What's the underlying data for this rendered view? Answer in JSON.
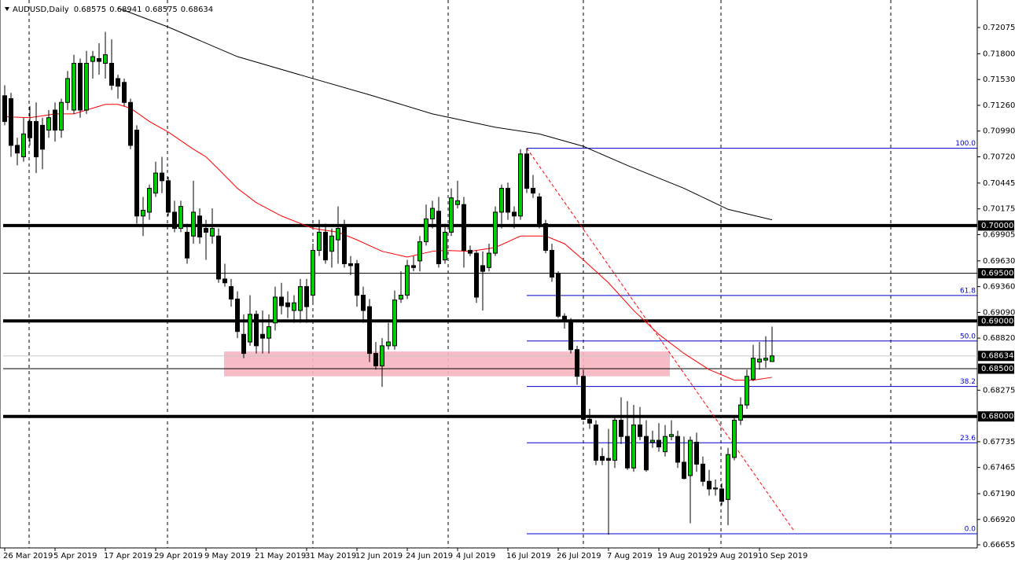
{
  "chart_data": {
    "type": "candlestick",
    "title": "AUDUSD,Daily",
    "categories": [
      "26 Mar 2019",
      null,
      null,
      null,
      null,
      null,
      null,
      null,
      "5 Apr 2019",
      null,
      null,
      null,
      null,
      null,
      null,
      null,
      "17 Apr 2019",
      null,
      null,
      null,
      null,
      null,
      null,
      null,
      "29 Apr 2019",
      null,
      null,
      null,
      null,
      null,
      null,
      null,
      "9 May 2019",
      null,
      null,
      null,
      null,
      null,
      null,
      null,
      "21 May 2019",
      null,
      null,
      null,
      null,
      null,
      null,
      null,
      "31 May 2019",
      null,
      null,
      null,
      null,
      null,
      null,
      null,
      "12 Jun 2019",
      null,
      null,
      null,
      null,
      null,
      null,
      null,
      "24 Jun 2019",
      null,
      null,
      null,
      null,
      null,
      null,
      null,
      "4 Jul 2019",
      null,
      null,
      null,
      null,
      null,
      null,
      null,
      "16 Jul 2019",
      null,
      null,
      null,
      null,
      null,
      null,
      null,
      "26 Jul 2019",
      null,
      null,
      null,
      null,
      null,
      null,
      null,
      "7 Aug 2019",
      null,
      null,
      null,
      null,
      null,
      null,
      null,
      "19 Aug 2019",
      null,
      null,
      null,
      null,
      null,
      null,
      null,
      "29 Aug 2019",
      null,
      null,
      null,
      null,
      null,
      null,
      null,
      "10 Sep 2019",
      null,
      null
    ],
    "ohlc": [
      [
        0.7136,
        0.7147,
        0.7105,
        0.7109
      ],
      [
        0.7133,
        0.7139,
        0.7072,
        0.7084
      ],
      [
        0.7084,
        0.7092,
        0.7063,
        0.7076
      ],
      [
        0.7072,
        0.7113,
        0.7067,
        0.7096
      ],
      [
        0.7109,
        0.7125,
        0.7084,
        0.7092
      ],
      [
        0.7109,
        0.7129,
        0.7055,
        0.7072
      ],
      [
        0.7105,
        0.7113,
        0.7059,
        0.708
      ],
      [
        0.71,
        0.7121,
        0.7092,
        0.7113
      ],
      [
        0.7121,
        0.7129,
        0.7088,
        0.71
      ],
      [
        0.71,
        0.7133,
        0.7092,
        0.7129
      ],
      [
        0.7129,
        0.7162,
        0.7121,
        0.7154
      ],
      [
        0.7121,
        0.7179,
        0.7117,
        0.717
      ],
      [
        0.717,
        0.7175,
        0.7113,
        0.7121
      ],
      [
        0.7121,
        0.7183,
        0.7117,
        0.717
      ],
      [
        0.7172,
        0.7183,
        0.7154,
        0.7177
      ],
      [
        0.7175,
        0.7191,
        0.7158,
        0.7172
      ],
      [
        0.717,
        0.7203,
        0.7154,
        0.7179
      ],
      [
        0.717,
        0.7195,
        0.7142,
        0.7147
      ],
      [
        0.7154,
        0.7158,
        0.7133,
        0.7146
      ],
      [
        0.715,
        0.7154,
        0.7125,
        0.7129
      ],
      [
        0.7129,
        0.7133,
        0.708,
        0.7084
      ],
      [
        0.71,
        0.7105,
        0.7002,
        0.701
      ],
      [
        0.701,
        0.703,
        0.6989,
        0.7016
      ],
      [
        0.7014,
        0.7043,
        0.7006,
        0.7039
      ],
      [
        0.7034,
        0.7067,
        0.703,
        0.7055
      ],
      [
        0.7055,
        0.7072,
        0.7034,
        0.7047
      ],
      [
        0.7047,
        0.7051,
        0.701,
        0.7014
      ],
      [
        0.7014,
        0.7026,
        0.6993,
        0.6997
      ],
      [
        0.6997,
        0.7026,
        0.6993,
        0.702
      ],
      [
        0.6993,
        0.7002,
        0.696,
        0.6966
      ],
      [
        0.6989,
        0.7047,
        0.6981,
        0.7014
      ],
      [
        0.701,
        0.7018,
        0.6981,
        0.6988
      ],
      [
        0.6997,
        0.7006,
        0.6964,
        0.6993
      ],
      [
        0.6989,
        0.7018,
        0.6981,
        0.6997
      ],
      [
        0.6989,
        0.6997,
        0.694,
        0.6944
      ],
      [
        0.6944,
        0.696,
        0.6936,
        0.694
      ],
      [
        0.6936,
        0.6944,
        0.6915,
        0.6923
      ],
      [
        0.6923,
        0.6931,
        0.6882,
        0.6889
      ],
      [
        0.6886,
        0.6907,
        0.6861,
        0.6866
      ],
      [
        0.6878,
        0.6927,
        0.6874,
        0.6907
      ],
      [
        0.6907,
        0.6911,
        0.6866,
        0.6874
      ],
      [
        0.6886,
        0.6911,
        0.6866,
        0.6882
      ],
      [
        0.6882,
        0.6907,
        0.6866,
        0.6894
      ],
      [
        0.6898,
        0.6936,
        0.689,
        0.6925
      ],
      [
        0.6925,
        0.694,
        0.6907,
        0.6916
      ],
      [
        0.6919,
        0.6931,
        0.6903,
        0.6915
      ],
      [
        0.6911,
        0.6927,
        0.6898,
        0.6919
      ],
      [
        0.6911,
        0.6944,
        0.6898,
        0.6936
      ],
      [
        0.6936,
        0.6944,
        0.6898,
        0.6915
      ],
      [
        0.6927,
        0.6981,
        0.6919,
        0.6974
      ],
      [
        0.6974,
        0.7006,
        0.6968,
        0.6993
      ],
      [
        0.6993,
        0.7002,
        0.696,
        0.6964
      ],
      [
        0.6973,
        0.6997,
        0.6956,
        0.6989
      ],
      [
        0.6985,
        0.702,
        0.696,
        0.6997
      ],
      [
        0.6999,
        0.7006,
        0.6956,
        0.696
      ],
      [
        0.696,
        0.6968,
        0.6948,
        0.6958
      ],
      [
        0.696,
        0.6964,
        0.6915,
        0.6927
      ],
      [
        0.6927,
        0.6936,
        0.6898,
        0.6911
      ],
      [
        0.6915,
        0.6923,
        0.6857,
        0.6866
      ],
      [
        0.6866,
        0.6878,
        0.6849,
        0.6853
      ],
      [
        0.6853,
        0.6882,
        0.6831,
        0.6874
      ],
      [
        0.6874,
        0.6898,
        0.687,
        0.6878
      ],
      [
        0.6874,
        0.6932,
        0.687,
        0.6922
      ],
      [
        0.6923,
        0.6952,
        0.6919,
        0.6927
      ],
      [
        0.6927,
        0.6964,
        0.6923,
        0.6958
      ],
      [
        0.6958,
        0.6968,
        0.6952,
        0.6956
      ],
      [
        0.6963,
        0.6989,
        0.6952,
        0.6983
      ],
      [
        0.6983,
        0.7022,
        0.6979,
        0.7007
      ],
      [
        0.7007,
        0.7026,
        0.6997,
        0.7018
      ],
      [
        0.7015,
        0.703,
        0.6956,
        0.696
      ],
      [
        0.6964,
        0.7002,
        0.696,
        0.6993
      ],
      [
        0.6993,
        0.7039,
        0.6989,
        0.7029
      ],
      [
        0.7022,
        0.7047,
        0.7018,
        0.7026
      ],
      [
        0.7022,
        0.703,
        0.6956,
        0.6974
      ],
      [
        0.6974,
        0.6979,
        0.6968,
        0.6971
      ],
      [
        0.6971,
        0.6974,
        0.6919,
        0.6925
      ],
      [
        0.6958,
        0.6973,
        0.6911,
        0.6952
      ],
      [
        0.6956,
        0.6981,
        0.6952,
        0.6971
      ],
      [
        0.6971,
        0.702,
        0.6968,
        0.7014
      ],
      [
        0.7014,
        0.7043,
        0.6997,
        0.7039
      ],
      [
        0.7039,
        0.7045,
        0.7006,
        0.7014
      ],
      [
        0.7014,
        0.702,
        0.6997,
        0.701
      ],
      [
        0.701,
        0.708,
        0.7006,
        0.7075
      ],
      [
        0.7075,
        0.7081,
        0.7034,
        0.7039
      ],
      [
        0.7039,
        0.7053,
        0.7029,
        0.7034
      ],
      [
        0.703,
        0.7034,
        0.6997,
        0.7002
      ],
      [
        0.7002,
        0.7006,
        0.6971,
        0.6974
      ],
      [
        0.6974,
        0.6981,
        0.6941,
        0.6946
      ],
      [
        0.695,
        0.6952,
        0.6903,
        0.6905
      ],
      [
        0.6905,
        0.6908,
        0.6892,
        0.69
      ],
      [
        0.69,
        0.6903,
        0.6866,
        0.687
      ],
      [
        0.687,
        0.6874,
        0.6833,
        0.6842
      ],
      [
        0.6842,
        0.6849,
        0.6796,
        0.6797
      ],
      [
        0.6797,
        0.6808,
        0.6787,
        0.6793
      ],
      [
        0.6791,
        0.6796,
        0.6749,
        0.6754
      ],
      [
        0.6758,
        0.6767,
        0.6749,
        0.6754
      ],
      [
        0.6756,
        0.6787,
        0.6676,
        0.6754
      ],
      [
        0.6754,
        0.68,
        0.6746,
        0.6796
      ],
      [
        0.6796,
        0.682,
        0.6771,
        0.6779
      ],
      [
        0.6779,
        0.6816,
        0.6744,
        0.6746
      ],
      [
        0.6746,
        0.6812,
        0.6742,
        0.6791
      ],
      [
        0.6791,
        0.681,
        0.6775,
        0.6779
      ],
      [
        0.6779,
        0.6796,
        0.6742,
        0.6744
      ],
      [
        0.6773,
        0.6785,
        0.6767,
        0.6775
      ],
      [
        0.6775,
        0.6793,
        0.6763,
        0.6768
      ],
      [
        0.6763,
        0.6791,
        0.6758,
        0.6779
      ],
      [
        0.6779,
        0.6796,
        0.6775,
        0.6781
      ],
      [
        0.6779,
        0.6785,
        0.6746,
        0.6752
      ],
      [
        0.6752,
        0.6779,
        0.6734,
        0.6735
      ],
      [
        0.6738,
        0.6779,
        0.6688,
        0.6775
      ],
      [
        0.6773,
        0.6783,
        0.6742,
        0.675
      ],
      [
        0.675,
        0.6758,
        0.6727,
        0.6732
      ],
      [
        0.6732,
        0.6744,
        0.6717,
        0.6724
      ],
      [
        0.6724,
        0.6734,
        0.6717,
        0.6725
      ],
      [
        0.6724,
        0.673,
        0.6707,
        0.6711
      ],
      [
        0.6713,
        0.6767,
        0.6686,
        0.676
      ],
      [
        0.6757,
        0.68,
        0.6754,
        0.6796
      ],
      [
        0.6796,
        0.682,
        0.6791,
        0.6812
      ],
      [
        0.6812,
        0.6849,
        0.6808,
        0.6842
      ],
      [
        0.6839,
        0.6875,
        0.6837,
        0.6861
      ],
      [
        0.6857,
        0.6878,
        0.6849,
        0.686
      ],
      [
        0.6859,
        0.6884,
        0.6851,
        0.6861
      ],
      [
        0.68575,
        0.68941,
        0.68575,
        0.68634
      ]
    ],
    "up_color": "#00cc00",
    "down_color": "#000000",
    "ylim": [
      0.66655,
      0.72075
    ],
    "yticks": [
      0.72075,
      {
        "value": 0.718,
        "label": "0.71800"
      },
      {
        "value": 0.7153,
        "label": "0.71530"
      },
      {
        "value": 0.7126,
        "label": "0.71260"
      },
      {
        "value": 0.7099,
        "label": "0.70990"
      },
      {
        "value": 0.7072,
        "label": "0.70720"
      },
      0.70445,
      0.70175,
      0.69905,
      {
        "value": 0.6963,
        "label": "0.69630"
      },
      {
        "value": 0.6936,
        "label": "0.69360"
      },
      {
        "value": 0.6909,
        "label": "0.69090"
      },
      {
        "value": 0.6882,
        "label": "0.68820"
      },
      0.68275,
      0.67735,
      0.67465,
      {
        "value": 0.6719,
        "label": "0.67190"
      },
      {
        "value": 0.6692,
        "label": "0.66920"
      },
      0.66655
    ],
    "levels": [
      {
        "value": 0.7,
        "label": "0.70000"
      },
      {
        "value": 0.695,
        "label": "0.69500"
      },
      {
        "value": 0.69,
        "label": "0.69000"
      },
      {
        "value": 0.685,
        "label": "0.68500"
      },
      {
        "value": 0.68,
        "label": "0.68000"
      }
    ],
    "zone": {
      "low": 0.6842,
      "high": 0.6868,
      "color": "#f7b5c0"
    },
    "moving_averages": [
      {
        "color": "#ff0000",
        "x": [
          0,
          4,
          8,
          11,
          13,
          16,
          18,
          20,
          23,
          26,
          30,
          32,
          34,
          37,
          40,
          44,
          49,
          53,
          56,
          60,
          64,
          68,
          70,
          74,
          78,
          82,
          86,
          89,
          92,
          96,
          100,
          104,
          108,
          112,
          116,
          119,
          122
        ],
        "values": [
          0.7114,
          0.7113,
          0.7117,
          0.7117,
          0.7121,
          0.7127,
          0.7127,
          0.7123,
          0.7109,
          0.7098,
          0.708,
          0.7072,
          0.7059,
          0.7039,
          0.7024,
          0.701,
          0.6997,
          0.6993,
          0.6985,
          0.6973,
          0.6967,
          0.6973,
          0.6974,
          0.6973,
          0.6977,
          0.6989,
          0.6989,
          0.6981,
          0.6964,
          0.694,
          0.6911,
          0.6886,
          0.6866,
          0.6849,
          0.6838,
          0.6838,
          0.6841
        ]
      },
      {
        "color": "#000000",
        "x": [
          18,
          26,
          37,
          49,
          58,
          68,
          78,
          85,
          92,
          99,
          108,
          115,
          122
        ],
        "values": [
          0.7228,
          0.7208,
          0.7177,
          0.7154,
          0.7137,
          0.7117,
          0.7103,
          0.7096,
          0.7083,
          0.7063,
          0.7039,
          0.7017,
          0.7006
        ]
      }
    ],
    "fibonacci": {
      "high": 0.7081,
      "low": 0.6677,
      "color": "#0000cd",
      "levels": [
        {
          "value": 100,
          "label": "100.0"
        },
        61.8,
        {
          "value": 50,
          "label": "50.0"
        },
        38.2,
        23.6,
        {
          "value": 0,
          "label": "0.0"
        }
      ]
    },
    "trendline": {
      "color": "#ff0000",
      "values": [
        0.7081,
        0.668
      ]
    }
  }
}
